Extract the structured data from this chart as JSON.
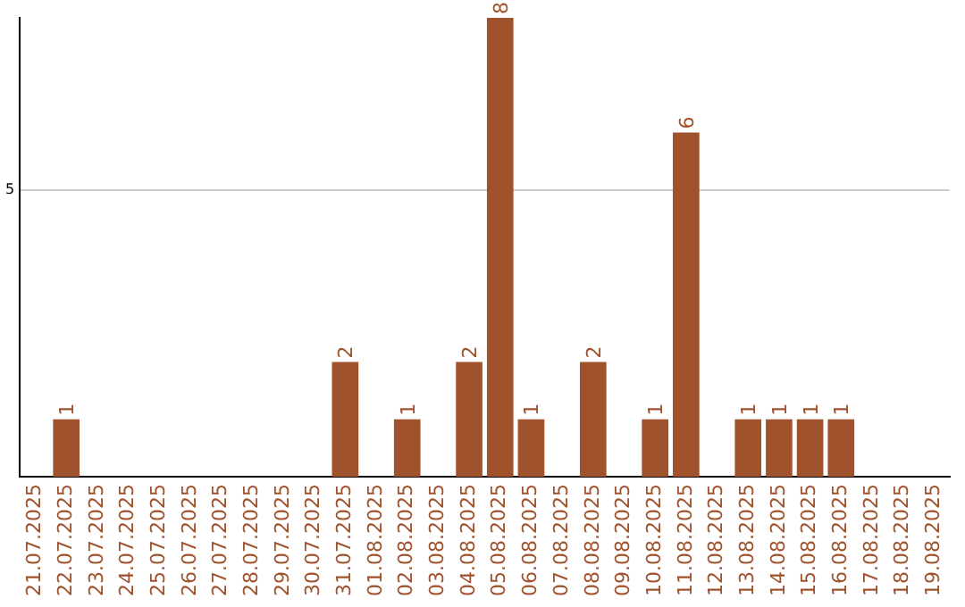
{
  "chart_data": {
    "type": "bar",
    "categories": [
      "21.07.2025",
      "22.07.2025",
      "23.07.2025",
      "24.07.2025",
      "25.07.2025",
      "26.07.2025",
      "27.07.2025",
      "28.07.2025",
      "29.07.2025",
      "30.07.2025",
      "31.07.2025",
      "01.08.2025",
      "02.08.2025",
      "03.08.2025",
      "04.08.2025",
      "05.08.2025",
      "06.08.2025",
      "07.08.2025",
      "08.08.2025",
      "09.08.2025",
      "10.08.2025",
      "11.08.2025",
      "12.08.2025",
      "13.08.2025",
      "14.08.2025",
      "15.08.2025",
      "16.08.2025",
      "17.08.2025",
      "18.08.2025",
      "19.08.2025"
    ],
    "values": [
      0,
      1,
      0,
      0,
      0,
      0,
      0,
      0,
      0,
      0,
      2,
      0,
      1,
      0,
      2,
      8,
      1,
      0,
      2,
      0,
      1,
      6,
      0,
      1,
      1,
      1,
      1,
      0,
      0,
      0
    ],
    "value_labels": [
      null,
      "1",
      null,
      null,
      null,
      null,
      null,
      null,
      null,
      null,
      "2",
      null,
      "1",
      null,
      "2",
      "8",
      "1",
      null,
      "2",
      null,
      "1",
      "6",
      null,
      "1",
      "1",
      "1",
      "1",
      null,
      null,
      null
    ],
    "color": "#a0522d",
    "ylim": [
      0,
      8
    ],
    "yticks": [
      5
    ],
    "grid": "y",
    "legend": false
  }
}
